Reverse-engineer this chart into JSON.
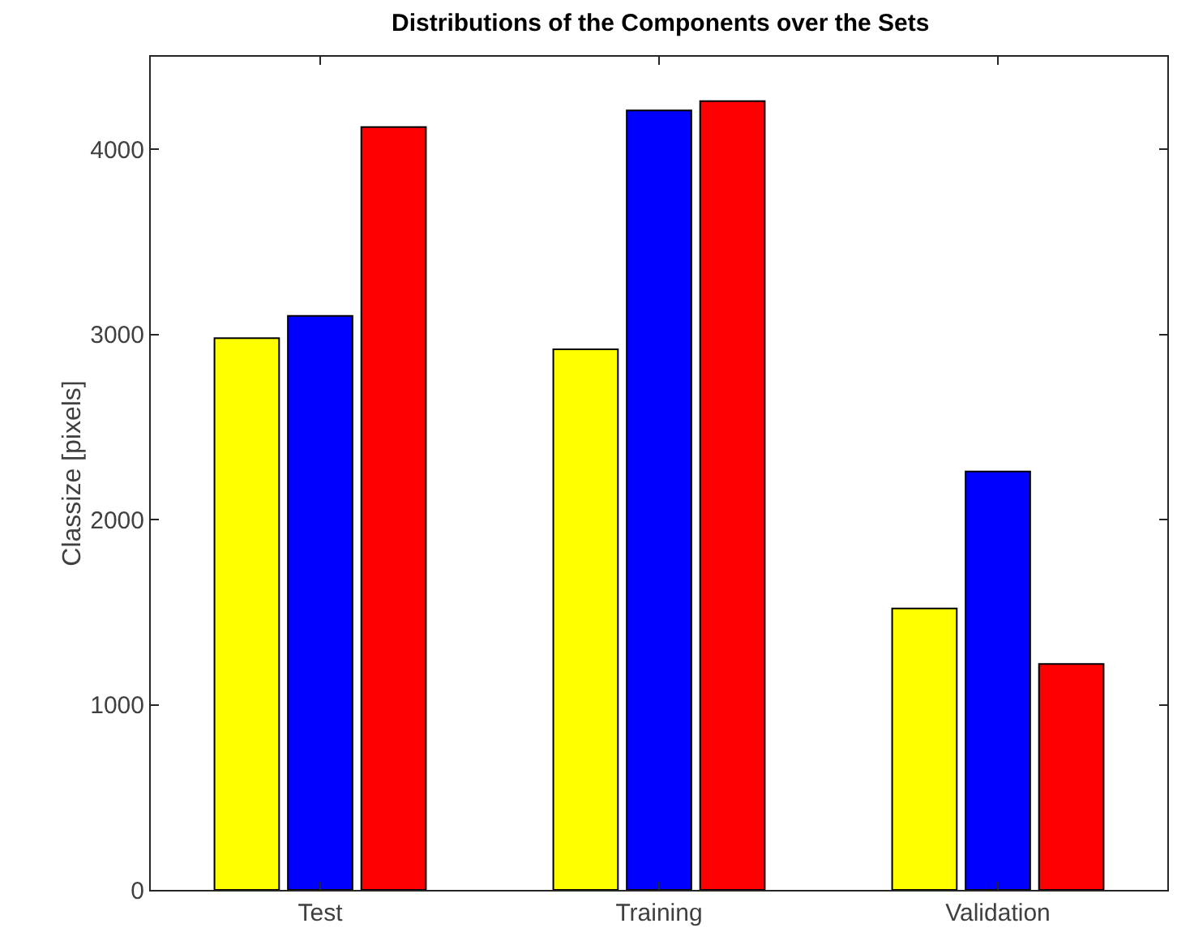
{
  "chart_data": {
    "type": "bar",
    "title": "Distributions of the Components over the Sets",
    "ylabel": "Classize [pixels]",
    "categories": [
      "Test",
      "Training",
      "Validation"
    ],
    "series": [
      {
        "color": "#ffff00",
        "values": [
          2980,
          2920,
          1520
        ]
      },
      {
        "color": "#0000ff",
        "values": [
          3100,
          4210,
          2260
        ]
      },
      {
        "color": "#ff0000",
        "values": [
          4120,
          4260,
          1220
        ]
      }
    ],
    "ylim": [
      0,
      4500
    ],
    "yticks": [
      0,
      1000,
      2000,
      3000,
      4000
    ],
    "grid": false
  }
}
